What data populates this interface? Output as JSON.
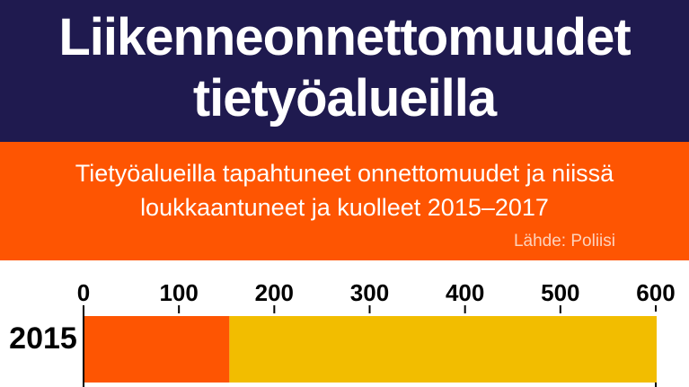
{
  "header": {
    "title": "Liikenneonnettomuudet tietyöalueilla"
  },
  "subheader": {
    "subtitle": "Tietyöalueilla tapahtuneet onnettomuudet ja niissä loukkaantuneet ja kuolleet 2015–2017",
    "source": "Lähde: Poliisi"
  },
  "chart_data": {
    "type": "bar",
    "orientation": "horizontal",
    "stacked": true,
    "categories": [
      "2015"
    ],
    "series": [
      {
        "values": [
          152
        ],
        "color": "#fe5502"
      },
      {
        "values": [
          448
        ],
        "color": "#f2bd00"
      }
    ],
    "xlim": [
      0,
      600
    ],
    "xticks": [
      "0",
      "100",
      "200",
      "300",
      "400",
      "500",
      "600"
    ],
    "grid": true
  }
}
